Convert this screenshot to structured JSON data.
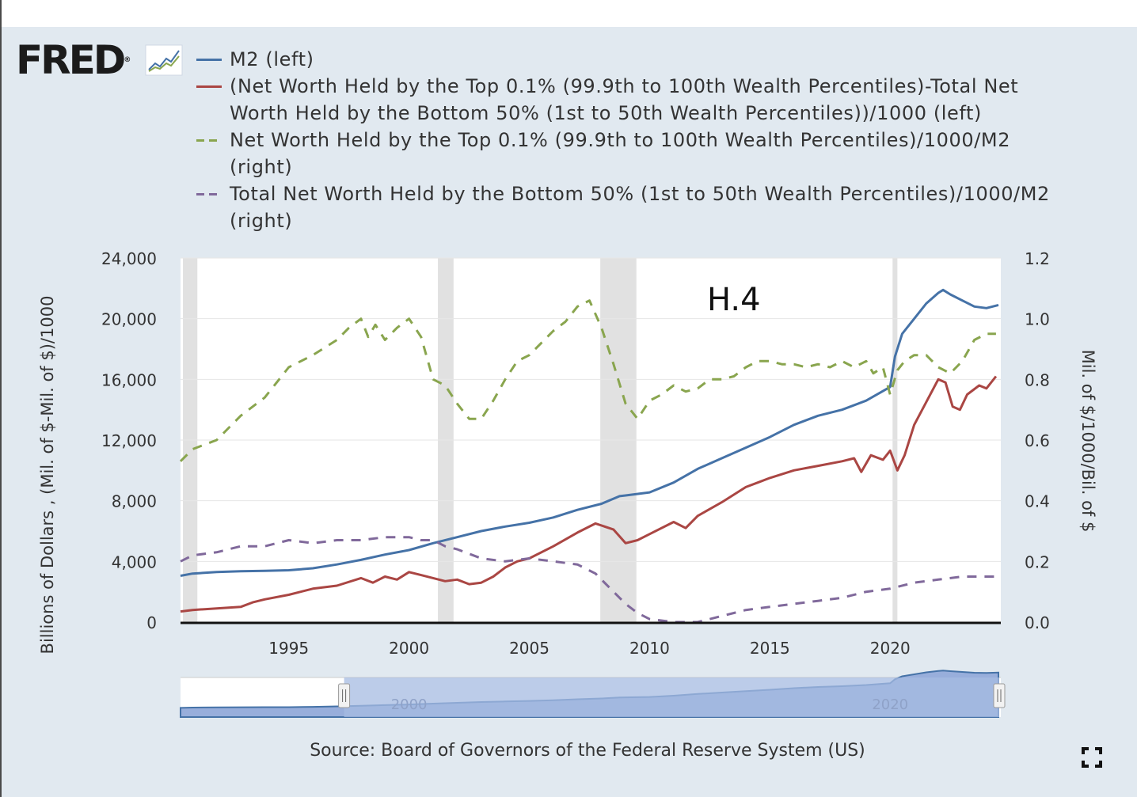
{
  "brand": {
    "logo_text": "FRED",
    "registered": "®"
  },
  "colors": {
    "m2": "#4572a7",
    "diff": "#aa4643",
    "top": "#89a54e",
    "bottom": "#80699b",
    "recession": "#e1e1e1",
    "navigator_fill": "#98aedb",
    "navigator_mask": "#a6bbe2"
  },
  "icons": {
    "logo_chart": "line-chart-icon",
    "fullscreen": "fullscreen-icon"
  },
  "source_text": "Source: Board of Governors of the Federal Reserve System (US)",
  "chart_data": {
    "type": "line",
    "title": "",
    "annotation": "H.4",
    "y_left_label": "Billions of Dollars , (Mil. of $-Mil. of $)/1000",
    "y_right_label": "Mil. of $/1000/Bil. of $",
    "xlim": [
      1990.5,
      2024.6
    ],
    "ylim_left": [
      0,
      24000
    ],
    "ylim_right": [
      0,
      1.2
    ],
    "x_ticks": [
      1995,
      2000,
      2005,
      2010,
      2015,
      2020
    ],
    "x_tick_labels": [
      "1995",
      "2000",
      "2005",
      "2010",
      "2015",
      "2020"
    ],
    "y_left_ticks": [
      0,
      4000,
      8000,
      12000,
      16000,
      20000,
      24000
    ],
    "y_left_tick_labels": [
      "0",
      "4,000",
      "8,000",
      "12,000",
      "16,000",
      "20,000",
      "24,000"
    ],
    "y_right_ticks": [
      0,
      0.2,
      0.4,
      0.6,
      0.8,
      1.0,
      1.2
    ],
    "y_right_tick_labels": [
      "0.0",
      "0.2",
      "0.4",
      "0.6",
      "0.8",
      "1.0",
      "1.2"
    ],
    "recessions": [
      [
        1990.6,
        1991.2
      ],
      [
        2001.2,
        2001.85
      ],
      [
        2007.95,
        2009.45
      ],
      [
        2020.1,
        2020.3
      ]
    ],
    "legend": [
      {
        "name": "M2 (left)",
        "style": "solid",
        "color": "#4572a7"
      },
      {
        "name": "(Net Worth Held by the Top 0.1% (99.9th to 100th Wealth Percentiles)-Total Net Worth Held by the Bottom 50% (1st to 50th Wealth Percentiles))/1000 (left)",
        "style": "solid",
        "color": "#aa4643"
      },
      {
        "name": "Net Worth Held by the Top 0.1% (99.9th to 100th Wealth Percentiles)/1000/M2 (right)",
        "style": "dash",
        "color": "#89a54e"
      },
      {
        "name": "Total Net Worth Held by the Bottom 50% (1st to 50th Wealth Percentiles)/1000/M2 (right)",
        "style": "dash",
        "color": "#80699b"
      }
    ],
    "series": [
      {
        "name": "M2 (left)",
        "axis": "left",
        "x": [
          1990.5,
          1991,
          1992,
          1993,
          1994,
          1995,
          1996,
          1997,
          1998,
          1999,
          2000,
          2001,
          2002,
          2003,
          2004,
          2005,
          2006,
          2007,
          2008,
          2008.75,
          2009,
          2010,
          2011,
          2012,
          2013,
          2014,
          2015,
          2016,
          2017,
          2018,
          2019,
          2020,
          2020.2,
          2020.5,
          2021,
          2021.5,
          2022,
          2022.2,
          2022.5,
          2023,
          2023.5,
          2024,
          2024.5
        ],
        "values": [
          3050,
          3200,
          3300,
          3350,
          3380,
          3420,
          3550,
          3800,
          4100,
          4450,
          4750,
          5200,
          5600,
          6000,
          6300,
          6550,
          6900,
          7400,
          7800,
          8300,
          8350,
          8550,
          9200,
          10100,
          10800,
          11500,
          12200,
          13000,
          13600,
          14000,
          14600,
          15500,
          17500,
          19000,
          20000,
          21000,
          21700,
          21900,
          21600,
          21200,
          20800,
          20700,
          20900
        ]
      },
      {
        "name": "(Net Worth Held by the Top 0.1% (99.9th to 100th Wealth Percentiles)-Total Net Worth Held by the Bottom 50% (1st to 50th Wealth Percentiles))/1000 (left)",
        "axis": "left",
        "x": [
          1990.5,
          1991,
          1991.5,
          1992,
          1993,
          1993.5,
          1994,
          1995,
          1996,
          1997,
          1998,
          1998.5,
          1999,
          1999.5,
          2000,
          2000.5,
          2001,
          2001.5,
          2002,
          2002.5,
          2003,
          2003.5,
          2004,
          2004.5,
          2005,
          2006,
          2007,
          2007.75,
          2008.5,
          2009,
          2009.5,
          2010,
          2011,
          2011.5,
          2012,
          2013,
          2014,
          2014.5,
          2015,
          2016,
          2017,
          2018,
          2018.5,
          2018.8,
          2019.2,
          2019.7,
          2020,
          2020.3,
          2020.6,
          2021,
          2021.5,
          2022,
          2022.3,
          2022.6,
          2022.9,
          2023.2,
          2023.7,
          2024,
          2024.4
        ],
        "values": [
          700,
          800,
          850,
          900,
          1000,
          1300,
          1500,
          1800,
          2200,
          2400,
          2900,
          2600,
          3000,
          2800,
          3300,
          3100,
          2900,
          2700,
          2800,
          2500,
          2600,
          3000,
          3600,
          4000,
          4200,
          5000,
          5900,
          6500,
          6100,
          5200,
          5400,
          5800,
          6600,
          6200,
          7000,
          7900,
          8900,
          9200,
          9500,
          10000,
          10300,
          10600,
          10800,
          9900,
          11000,
          10700,
          11300,
          10000,
          11000,
          13000,
          14500,
          16000,
          15800,
          14200,
          14000,
          15000,
          15600,
          15400,
          16200
        ]
      },
      {
        "name": "Net Worth Held by the Top 0.1% (99.9th to 100th Wealth Percentiles)/1000/M2 (right)",
        "axis": "right",
        "x": [
          1990.5,
          1991,
          1992,
          1993,
          1994,
          1995,
          1996,
          1997,
          1997.5,
          1998,
          1998.3,
          1998.6,
          1999,
          1999.5,
          2000,
          2000.5,
          2001,
          2001.5,
          2002,
          2002.5,
          2003,
          2003.5,
          2004,
          2004.5,
          2005,
          2005.5,
          2006,
          2006.5,
          2007,
          2007.5,
          2008,
          2008.5,
          2009,
          2009.5,
          2010,
          2010.5,
          2011,
          2011.5,
          2012,
          2012.5,
          2013,
          2013.5,
          2014,
          2014.5,
          2015,
          2015.5,
          2016,
          2016.5,
          2017,
          2017.5,
          2018,
          2018.5,
          2019,
          2019.3,
          2019.7,
          2020,
          2020.3,
          2020.6,
          2021,
          2021.5,
          2022,
          2022.5,
          2023,
          2023.5,
          2024,
          2024.4
        ],
        "values": [
          0.53,
          0.57,
          0.6,
          0.68,
          0.74,
          0.84,
          0.88,
          0.93,
          0.97,
          1.0,
          0.94,
          0.98,
          0.93,
          0.97,
          1.0,
          0.94,
          0.8,
          0.78,
          0.72,
          0.67,
          0.67,
          0.73,
          0.8,
          0.86,
          0.88,
          0.92,
          0.96,
          0.99,
          1.04,
          1.06,
          0.97,
          0.85,
          0.72,
          0.67,
          0.73,
          0.75,
          0.78,
          0.76,
          0.77,
          0.8,
          0.8,
          0.81,
          0.84,
          0.86,
          0.86,
          0.85,
          0.85,
          0.84,
          0.85,
          0.84,
          0.86,
          0.84,
          0.86,
          0.82,
          0.84,
          0.75,
          0.83,
          0.86,
          0.88,
          0.88,
          0.84,
          0.82,
          0.86,
          0.93,
          0.95,
          0.95
        ]
      },
      {
        "name": "Total Net Worth Held by the Bottom 50% (1st to 50th Wealth Percentiles)/1000/M2 (right)",
        "axis": "right",
        "x": [
          1990.5,
          1991,
          1992,
          1993,
          1994,
          1995,
          1996,
          1997,
          1998,
          1999,
          2000,
          2000.5,
          2001,
          2001.5,
          2002,
          2003,
          2004,
          2005,
          2006,
          2007,
          2007.75,
          2008.5,
          2009,
          2009.5,
          2010,
          2011,
          2012,
          2013,
          2014,
          2015,
          2016,
          2017,
          2018,
          2019,
          2020,
          2021,
          2022,
          2023,
          2024,
          2024.4
        ],
        "values": [
          0.2,
          0.22,
          0.23,
          0.25,
          0.25,
          0.27,
          0.26,
          0.27,
          0.27,
          0.28,
          0.28,
          0.27,
          0.27,
          0.25,
          0.24,
          0.21,
          0.2,
          0.21,
          0.2,
          0.19,
          0.16,
          0.1,
          0.06,
          0.03,
          0.01,
          0.0,
          0.0,
          0.02,
          0.04,
          0.05,
          0.06,
          0.07,
          0.08,
          0.1,
          0.11,
          0.13,
          0.14,
          0.15,
          0.15,
          0.15
        ]
      }
    ],
    "navigator": {
      "x_tick_labels": [
        "2000",
        "2020"
      ],
      "range": [
        1997.3,
        2024.6
      ]
    }
  }
}
